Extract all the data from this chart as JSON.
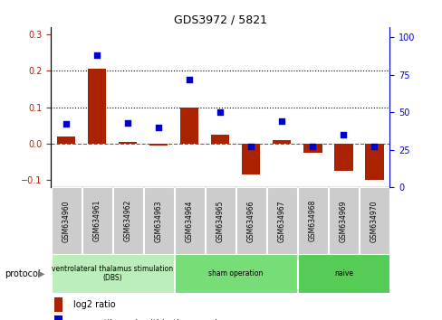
{
  "title": "GDS3972 / 5821",
  "samples": [
    "GSM634960",
    "GSM634961",
    "GSM634962",
    "GSM634963",
    "GSM634964",
    "GSM634965",
    "GSM634966",
    "GSM634967",
    "GSM634968",
    "GSM634969",
    "GSM634970"
  ],
  "log2_ratio": [
    0.02,
    0.205,
    0.005,
    -0.005,
    0.1,
    0.025,
    -0.085,
    0.01,
    -0.025,
    -0.075,
    -0.1
  ],
  "percentile_rank": [
    42,
    88,
    43,
    40,
    72,
    50,
    27,
    44,
    27,
    35,
    27
  ],
  "protocol_groups": [
    {
      "label": "ventrolateral thalamus stimulation\n(DBS)",
      "start": 0,
      "end": 3
    },
    {
      "label": "sham operation",
      "start": 4,
      "end": 7
    },
    {
      "label": "naive",
      "start": 8,
      "end": 10
    }
  ],
  "group_colors": [
    "#bbeebb",
    "#77dd77",
    "#55cc55"
  ],
  "bar_color": "#aa2200",
  "dot_color": "#0000cc",
  "ylim_left": [
    -0.12,
    0.32
  ],
  "ylim_right": [
    0,
    106.67
  ],
  "yticks_left": [
    -0.1,
    0.0,
    0.1,
    0.2,
    0.3
  ],
  "yticks_right": [
    0,
    25,
    50,
    75,
    100
  ],
  "hlines": [
    0.1,
    0.2
  ],
  "zero_line_color": "#cc3333",
  "label_bg": "#cccccc"
}
